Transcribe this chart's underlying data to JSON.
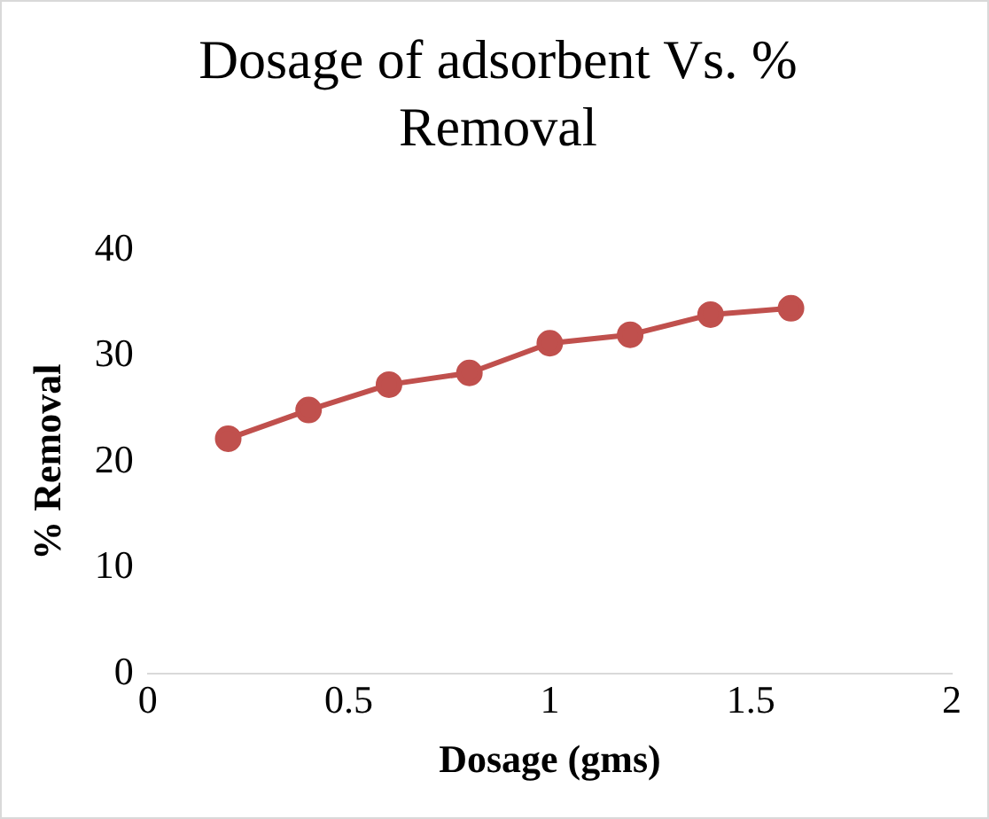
{
  "chart_data": {
    "type": "line",
    "title": "Dosage of adsorbent Vs. % Removal",
    "xlabel": "Dosage (gms)",
    "ylabel": "% Removal",
    "x": [
      0.2,
      0.4,
      0.6,
      0.8,
      1.0,
      1.2,
      1.4,
      1.6
    ],
    "series": [
      {
        "color": "#c0504d",
        "values": [
          22.2,
          24.9,
          27.3,
          28.4,
          31.2,
          32.0,
          33.9,
          34.5
        ]
      }
    ],
    "xlim": [
      0,
      2
    ],
    "xticks": [
      0,
      0.5,
      1,
      1.5,
      2
    ],
    "ylim": [
      0,
      40
    ],
    "yticks": [
      0,
      10,
      20,
      30,
      40
    ],
    "grid": false,
    "legend": false,
    "marker": "circle",
    "line_style": "solid"
  }
}
